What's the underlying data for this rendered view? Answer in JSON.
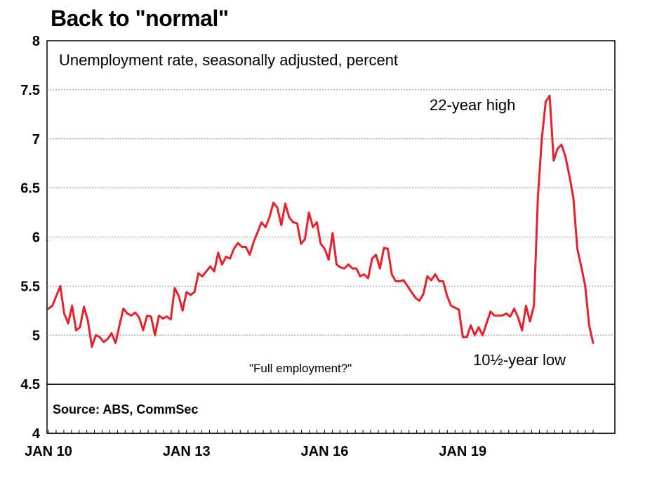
{
  "chart_data": {
    "type": "line",
    "title": "Back to \"normal\"",
    "subtitle": "Unemployment rate, seasonally adjusted, percent",
    "source": "Source: ABS, CommSec",
    "ylim": [
      4,
      8
    ],
    "yticks": [
      "4",
      "4.5",
      "5",
      "5.5",
      "6",
      "6.5",
      "7",
      "7.5",
      "8"
    ],
    "xticks": [
      "JAN 10",
      "JAN 13",
      "JAN 16",
      "JAN 19"
    ],
    "x_start": "2010-01",
    "x_end": "2021-11",
    "reference_line": {
      "y": 4.5,
      "label": "\"Full employment?\""
    },
    "annotations": {
      "high": "22-year high",
      "low": "10½-year low"
    },
    "colors": {
      "line": "#e8202a",
      "grid": "#888888"
    },
    "series": [
      {
        "values": [
          5.27,
          5.3,
          5.4,
          5.5,
          5.22,
          5.12,
          5.3,
          5.05,
          5.08,
          5.29,
          5.15,
          4.88,
          5.0,
          4.98,
          4.93,
          4.96,
          5.02,
          4.92,
          5.1,
          5.27,
          5.22,
          5.2,
          5.23,
          5.18,
          5.05,
          5.2,
          5.19,
          5.0,
          5.2,
          5.17,
          5.19,
          5.16,
          5.48,
          5.4,
          5.25,
          5.44,
          5.41,
          5.44,
          5.63,
          5.6,
          5.65,
          5.7,
          5.65,
          5.84,
          5.72,
          5.8,
          5.78,
          5.88,
          5.94,
          5.9,
          5.9,
          5.82,
          5.95,
          6.05,
          6.15,
          6.1,
          6.2,
          6.35,
          6.3,
          6.12,
          6.34,
          6.2,
          6.15,
          6.14,
          5.93,
          5.98,
          6.25,
          6.1,
          6.15,
          5.93,
          5.88,
          5.77,
          6.04,
          5.72,
          5.69,
          5.68,
          5.72,
          5.68,
          5.68,
          5.6,
          5.62,
          5.58,
          5.78,
          5.82,
          5.68,
          5.89,
          5.88,
          5.62,
          5.55,
          5.55,
          5.56,
          5.5,
          5.44,
          5.38,
          5.35,
          5.42,
          5.6,
          5.56,
          5.62,
          5.55,
          5.55,
          5.4,
          5.3,
          5.28,
          5.26,
          4.98,
          4.98,
          5.1,
          5.0,
          5.08,
          5.0,
          5.12,
          5.24,
          5.2,
          5.2,
          5.2,
          5.22,
          5.19,
          5.27,
          5.18,
          5.05,
          5.3,
          5.14,
          5.3,
          6.4,
          7.0,
          7.38,
          7.44,
          6.78,
          6.9,
          6.94,
          6.82,
          6.62,
          6.4,
          5.88,
          5.7,
          5.5,
          5.1,
          4.92
        ]
      }
    ]
  }
}
